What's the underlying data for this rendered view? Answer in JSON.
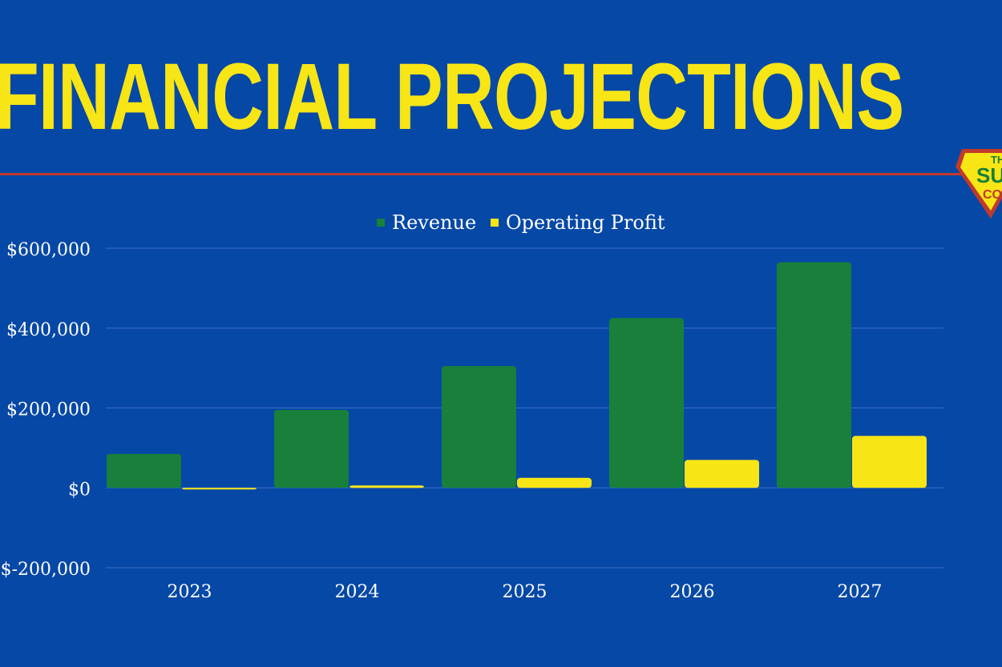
{
  "page": {
    "title": "FINANCIAL PROJECTIONS"
  },
  "colors": {
    "background": "#0648a6",
    "title": "#f7e516",
    "divider": "#c0392b",
    "gridline": "#3a6fc4"
  },
  "chart_data": {
    "type": "bar",
    "title": "",
    "categories": [
      "2023",
      "2024",
      "2025",
      "2026",
      "2027"
    ],
    "series": [
      {
        "name": "Revenue",
        "color": "#18803a",
        "values": [
          85000,
          195000,
          305000,
          425000,
          565000
        ]
      },
      {
        "name": "Operating Profit",
        "color": "#f7e516",
        "values": [
          -2000,
          6000,
          25000,
          70000,
          130000
        ]
      }
    ],
    "y_ticks": [
      600000,
      400000,
      200000,
      0,
      -200000
    ],
    "y_tick_labels": [
      "$600,000",
      "$400,000",
      "$200,000",
      "$0",
      "$-200,000"
    ],
    "ylim": [
      -200000,
      600000
    ],
    "xlabel": "",
    "ylabel": "",
    "grid": true,
    "legend_position": "top-center"
  }
}
